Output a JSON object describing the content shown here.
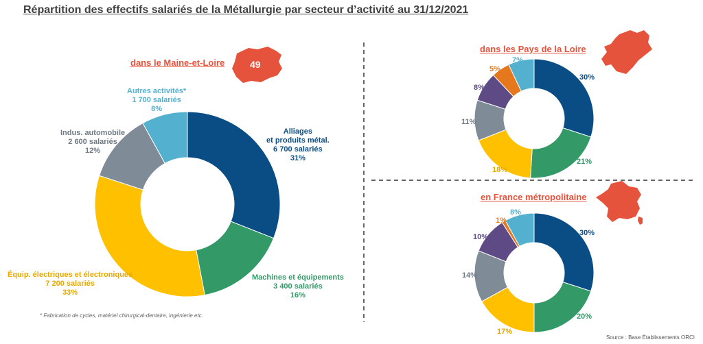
{
  "title": "Répartition des effectifs salariés de la Métallurgie par secteur d’activité au 31/12/2021",
  "colors": {
    "alliages": "#0a4d85",
    "machines": "#339966",
    "equip": "#ffc000",
    "auto": "#7f8c97",
    "autres": "#54b0cf",
    "violet": "#5e4b86",
    "orange": "#e5781d",
    "accent_red": "#e5533d"
  },
  "main_chart": {
    "region_label": "dans le Maine-et-Loire",
    "badge": "49",
    "footnote": "* Fabrication de cycles, matériel chirurgical-dentaire, ingénierie etc.",
    "labels": {
      "alliages": [
        "Alliages",
        "et produits métal.",
        "6 700 salariés",
        "31%"
      ],
      "machines": [
        "Machines et équipements",
        "3 400 salariés",
        "16%"
      ],
      "equip": [
        "Équip. électriques et électroniques",
        "7 200 salariés",
        "33%"
      ],
      "auto": [
        "Indus. automobile",
        "2 600 salariés",
        "12%"
      ],
      "autres": [
        "Autres activités*",
        "1 700 salariés",
        "8%"
      ]
    }
  },
  "pdl_chart": {
    "region_label": "dans les Pays de la Loire",
    "pct_labels": [
      "30%",
      "21%",
      "18%",
      "11%",
      "8%",
      "5%",
      "7%"
    ]
  },
  "france_chart": {
    "region_label": "en France métropolitaine",
    "pct_labels": [
      "30%",
      "20%",
      "17%",
      "14%",
      "10%",
      "1%",
      "8%"
    ]
  },
  "source": "Source : Base Établissements ORCI",
  "chart_data": [
    {
      "type": "pie",
      "title": "dans le Maine-et-Loire",
      "categories": [
        "Alliages et produits métal.",
        "Machines et équipements",
        "Équip. électriques et électroniques",
        "Indus. automobile",
        "Autres activités*"
      ],
      "values": [
        31,
        16,
        33,
        12,
        8
      ],
      "salaries": [
        6700,
        3400,
        7200,
        2600,
        1700
      ],
      "colors": [
        "#0a4d85",
        "#339966",
        "#ffc000",
        "#7f8c97",
        "#54b0cf"
      ]
    },
    {
      "type": "pie",
      "title": "dans les Pays de la Loire",
      "values": [
        30,
        21,
        18,
        11,
        8,
        5,
        7
      ],
      "colors": [
        "#0a4d85",
        "#339966",
        "#ffc000",
        "#7f8c97",
        "#5e4b86",
        "#e5781d",
        "#54b0cf"
      ]
    },
    {
      "type": "pie",
      "title": "en France métropolitaine",
      "values": [
        30,
        20,
        17,
        14,
        10,
        1,
        8
      ],
      "colors": [
        "#0a4d85",
        "#339966",
        "#ffc000",
        "#7f8c97",
        "#5e4b86",
        "#e5781d",
        "#54b0cf"
      ]
    }
  ]
}
